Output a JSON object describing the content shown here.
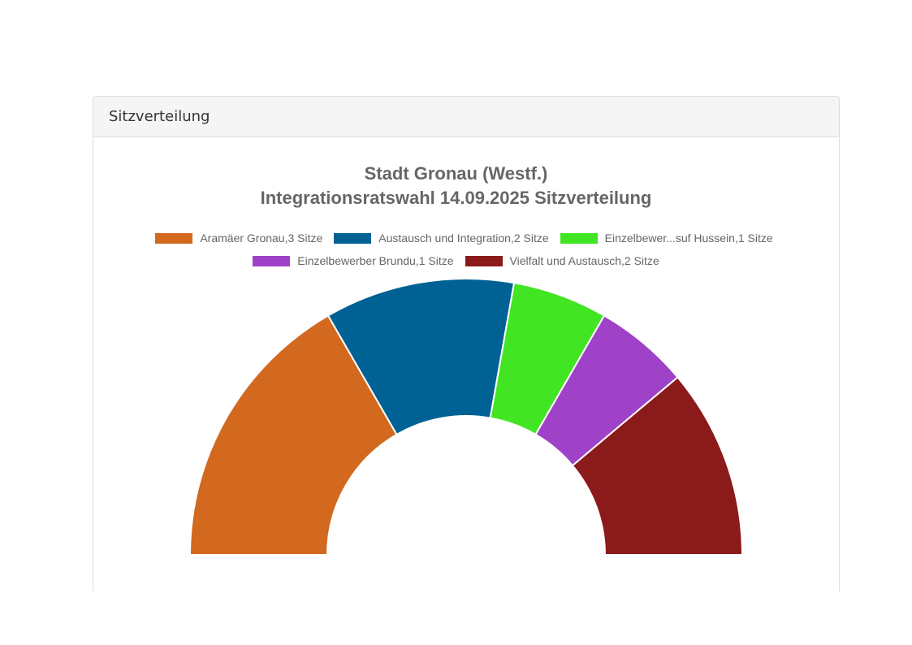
{
  "panel": {
    "heading": "Sitzverteilung"
  },
  "chart_data": {
    "type": "pie",
    "variant": "half-doughnut",
    "title": [
      "Stadt Gronau (Westf.)",
      "Integrationsratswahl 14.09.2025 Sitzverteilung"
    ],
    "categories": [
      "Aramäer Gronau",
      "Austausch und Integration",
      "Einzelbewer...suf Hussein",
      "Einzelbewerber Brundu",
      "Vielfalt und Austausch"
    ],
    "values": [
      3,
      2,
      1,
      1,
      2
    ],
    "colors": [
      "#D2691E",
      "#006195",
      "#42E523",
      "#A042C7",
      "#8B1A1A"
    ],
    "total": 9,
    "legend_position": "top",
    "legend": [
      {
        "label": "Aramäer Gronau,3 Sitze",
        "color": "#D2691E"
      },
      {
        "label": "Austausch und Integration,2 Sitze",
        "color": "#006195"
      },
      {
        "label": "Einzelbewer...suf Hussein,1 Sitze",
        "color": "#42E523"
      },
      {
        "label": "Einzelbewerber Brundu,1 Sitze",
        "color": "#A042C7"
      },
      {
        "label": "Vielfalt und Austausch,2 Sitze",
        "color": "#8B1A1A"
      }
    ]
  }
}
